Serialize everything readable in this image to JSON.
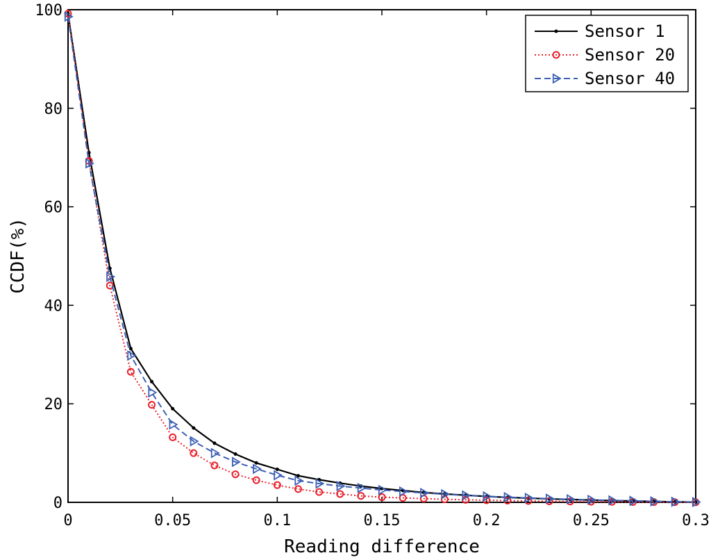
{
  "chart_data": {
    "type": "line",
    "title": "",
    "xlabel": "Reading difference",
    "ylabel": "CCDF(%)",
    "xlim": [
      0,
      0.3
    ],
    "ylim": [
      0,
      100
    ],
    "xticks": [
      0,
      0.05,
      0.1,
      0.15,
      0.2,
      0.25,
      0.3
    ],
    "xtick_labels": [
      "0",
      "0.05",
      "0.1",
      "0.15",
      "0.2",
      "0.25",
      "0.3"
    ],
    "yticks": [
      0,
      20,
      40,
      60,
      80,
      100
    ],
    "ytick_labels": [
      "0",
      "20",
      "40",
      "60",
      "80",
      "100"
    ],
    "grid": false,
    "legend_position": "top-right",
    "x": [
      0,
      0.01,
      0.02,
      0.03,
      0.04,
      0.05,
      0.06,
      0.07,
      0.08,
      0.09,
      0.1,
      0.11,
      0.12,
      0.13,
      0.14,
      0.15,
      0.16,
      0.17,
      0.18,
      0.19,
      0.2,
      0.21,
      0.22,
      0.23,
      0.24,
      0.25,
      0.26,
      0.27,
      0.28,
      0.29,
      0.3
    ],
    "series": [
      {
        "name": "Sensor 1",
        "color": "#000000",
        "marker": "dot",
        "dash": "solid",
        "values": [
          99.2,
          71,
          47.5,
          31.2,
          24.5,
          19,
          15.1,
          12,
          9.8,
          8,
          6.7,
          5.4,
          4.6,
          3.9,
          3.3,
          2.8,
          2.4,
          2.0,
          1.7,
          1.45,
          1.2,
          1.0,
          0.85,
          0.7,
          0.58,
          0.46,
          0.36,
          0.27,
          0.18,
          0.1,
          0.05
        ]
      },
      {
        "name": "Sensor 20",
        "color": "#e8202a",
        "marker": "circle",
        "dash": "dotted",
        "values": [
          99.2,
          69.3,
          44,
          26.5,
          19.8,
          13.2,
          10,
          7.5,
          5.7,
          4.5,
          3.5,
          2.7,
          2.1,
          1.7,
          1.3,
          1.05,
          0.9,
          0.75,
          0.62,
          0.52,
          0.43,
          0.35,
          0.28,
          0.22,
          0.17,
          0.13,
          0.1,
          0.07,
          0.05,
          0.03,
          0.02
        ]
      },
      {
        "name": "Sensor 40",
        "color": "#3c5fb4",
        "marker": "triangle-right",
        "dash": "dashed",
        "values": [
          98.6,
          68.8,
          45.8,
          29.8,
          22.3,
          15.8,
          12.4,
          10,
          8.2,
          6.8,
          5.5,
          4.4,
          3.8,
          3.3,
          2.9,
          2.5,
          2.2,
          1.9,
          1.65,
          1.4,
          1.2,
          1.05,
          0.9,
          0.75,
          0.62,
          0.5,
          0.4,
          0.3,
          0.2,
          0.12,
          0.06
        ]
      }
    ]
  }
}
